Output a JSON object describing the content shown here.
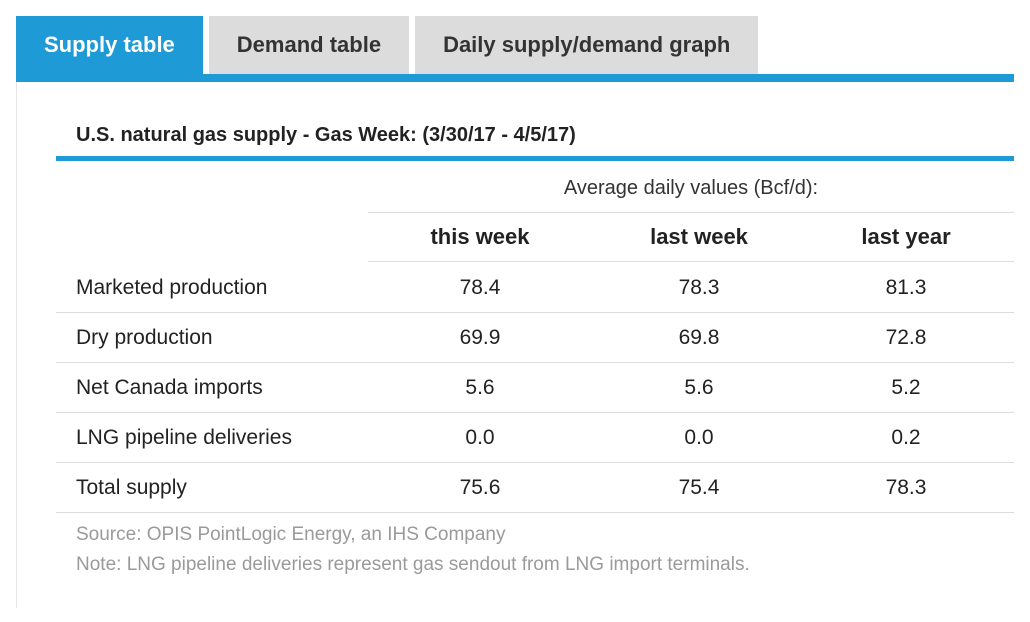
{
  "tabs": [
    {
      "label": "Supply table",
      "active": true
    },
    {
      "label": "Demand table",
      "active": false
    },
    {
      "label": "Daily supply/demand graph",
      "active": false
    }
  ],
  "table": {
    "title": "U.S. natural gas supply - Gas Week: (3/30/17 - 4/5/17)",
    "group_header": "Average daily values (Bcf/d):",
    "columns": [
      "this week",
      "last week",
      "last year"
    ],
    "rows": [
      {
        "label": "Marketed production",
        "values": [
          "78.4",
          "78.3",
          "81.3"
        ]
      },
      {
        "label": "Dry production",
        "values": [
          "69.9",
          "69.8",
          "72.8"
        ]
      },
      {
        "label": "Net Canada imports",
        "values": [
          "5.6",
          "5.6",
          "5.2"
        ]
      },
      {
        "label": "LNG pipeline deliveries",
        "values": [
          "0.0",
          "0.0",
          "0.2"
        ]
      },
      {
        "label": "Total supply",
        "values": [
          "75.6",
          "75.4",
          "78.3"
        ]
      }
    ]
  },
  "footnotes": {
    "source": "Source: OPIS PointLogic Energy, an IHS Company",
    "note": "Note: LNG pipeline deliveries represent gas sendout from LNG import terminals."
  },
  "colors": {
    "accent": "#1e9ad6",
    "tab_inactive": "#dcdcdc",
    "footnote_text": "#9a9a9a"
  }
}
